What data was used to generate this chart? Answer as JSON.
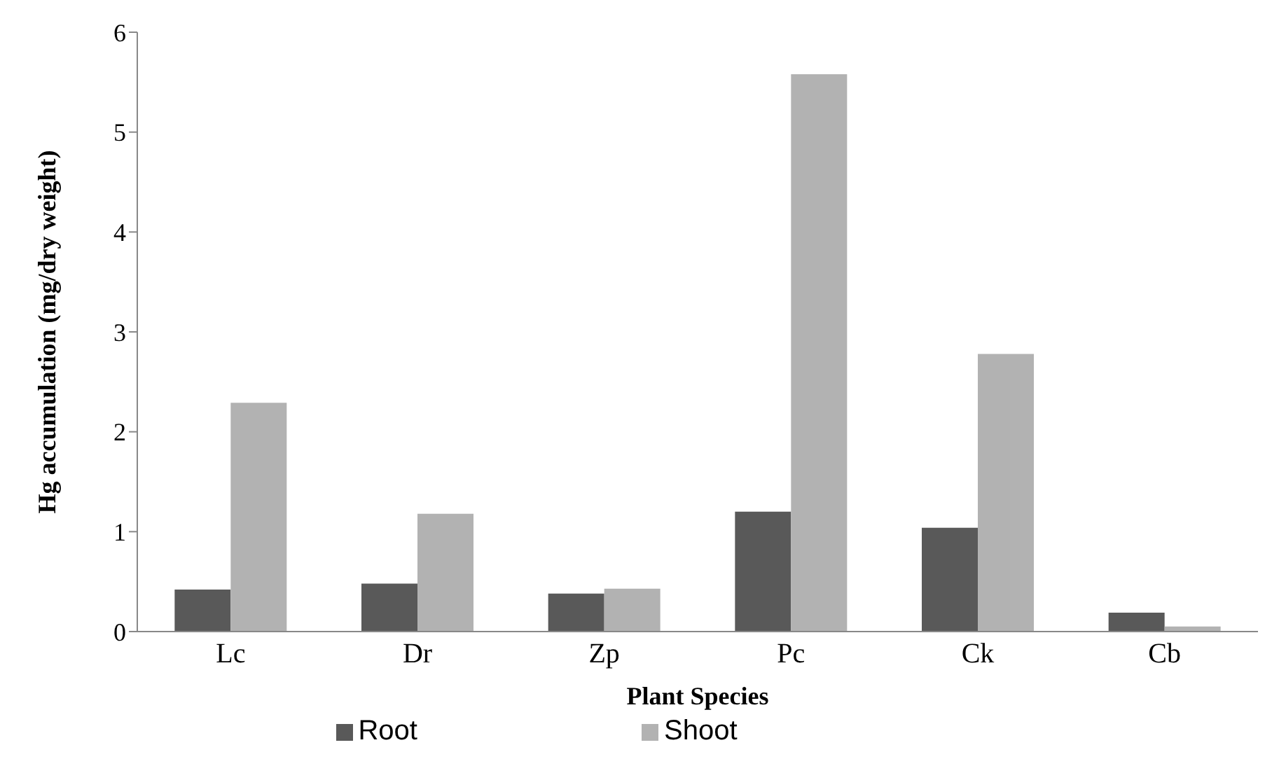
{
  "chart_data": {
    "type": "bar",
    "xlabel": "Plant Species",
    "ylabel": "Hg accumulation (mg/dry weight)",
    "categories": [
      "Lc",
      "Dr",
      "Zp",
      "Pc",
      "Ck",
      "Cb"
    ],
    "series": [
      {
        "name": "Root",
        "color": "#595959",
        "values": [
          0.42,
          0.48,
          0.38,
          1.2,
          1.04,
          0.19
        ]
      },
      {
        "name": "Shoot",
        "color": "#b2b2b2",
        "values": [
          2.29,
          1.18,
          0.43,
          5.58,
          2.78,
          0.05
        ]
      }
    ],
    "ylim": [
      0,
      6
    ],
    "yticks": [
      0,
      1,
      2,
      3,
      4,
      5,
      6
    ],
    "grid": false,
    "legend": "bottom"
  }
}
